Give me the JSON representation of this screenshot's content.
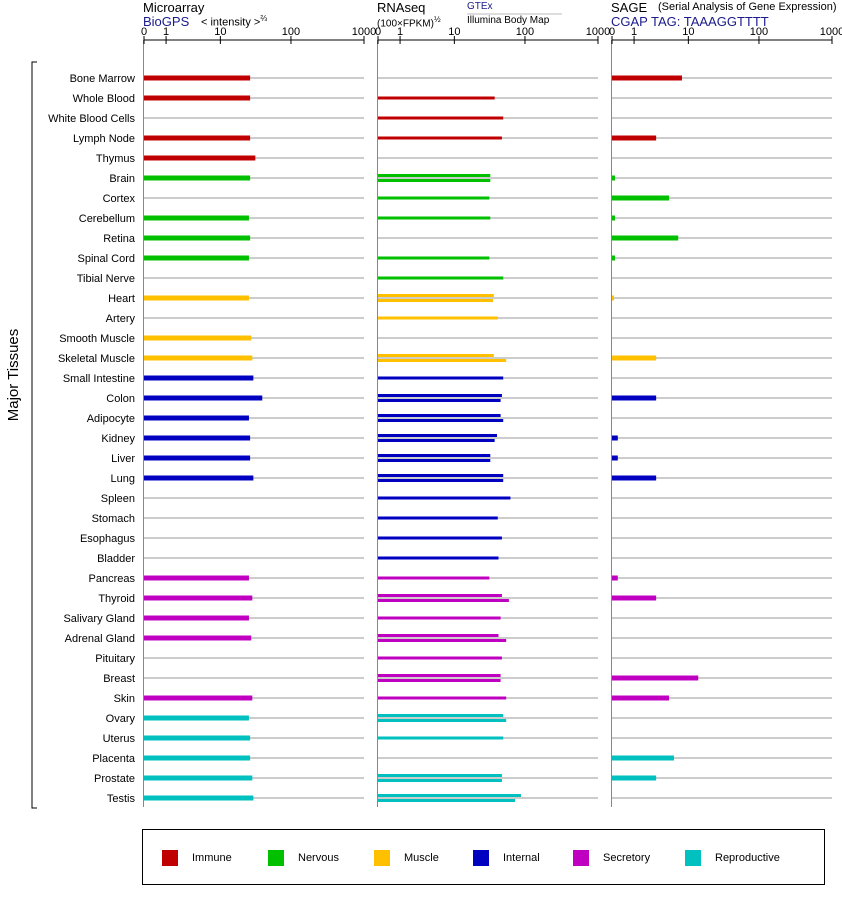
{
  "headers": {
    "microarray": {
      "title": "Microarray",
      "source": "BioGPS",
      "unit": "< intensity >",
      "exponent": "⅔"
    },
    "rnaseq": {
      "title": "RNAseq",
      "unit": "(100×FPKM)",
      "exponent": "½",
      "source1": "GTEx",
      "source2": "Illumina Body Map"
    },
    "sage": {
      "title": "SAGE",
      "subtitle": "(Serial Analysis of Gene Expression)",
      "tag": "CGAP TAG: TAAAGGTTTT"
    }
  },
  "legend": [
    {
      "label": "Immune",
      "color": "#c00000"
    },
    {
      "label": "Nervous",
      "color": "#00c000"
    },
    {
      "label": "Muscle",
      "color": "#ffc000"
    },
    {
      "label": "Internal",
      "color": "#0000c0"
    },
    {
      "label": "Secretory",
      "color": "#c000c0"
    },
    {
      "label": "Reproductive",
      "color": "#00c0c0"
    }
  ],
  "chart_data": {
    "type": "bar",
    "orientation": "horizontal",
    "group_label": "Major Tissues",
    "axis_ticks": [
      "0",
      "1",
      "10",
      "100",
      "1000"
    ],
    "xlim": [
      0,
      1000
    ],
    "categories": [
      "Bone Marrow",
      "Whole Blood",
      "White Blood Cells",
      "Lymph Node",
      "Thymus",
      "Brain",
      "Cortex",
      "Cerebellum",
      "Retina",
      "Spinal Cord",
      "Tibial Nerve",
      "Heart",
      "Artery",
      "Smooth Muscle",
      "Skeletal Muscle",
      "Small Intestine",
      "Colon",
      "Adipocyte",
      "Kidney",
      "Liver",
      "Lung",
      "Spleen",
      "Stomach",
      "Esophagus",
      "Bladder",
      "Pancreas",
      "Thyroid",
      "Salivary Gland",
      "Adrenal Gland",
      "Pituitary",
      "Breast",
      "Skin",
      "Ovary",
      "Uterus",
      "Placenta",
      "Prostate",
      "Testis"
    ],
    "tissue_group": [
      "Immune",
      "Immune",
      "Immune",
      "Immune",
      "Immune",
      "Nervous",
      "Nervous",
      "Nervous",
      "Nervous",
      "Nervous",
      "Nervous",
      "Muscle",
      "Muscle",
      "Muscle",
      "Muscle",
      "Internal",
      "Internal",
      "Internal",
      "Internal",
      "Internal",
      "Internal",
      "Internal",
      "Internal",
      "Internal",
      "Internal",
      "Secretory",
      "Secretory",
      "Secretory",
      "Secretory",
      "Secretory",
      "Secretory",
      "Secretory",
      "Reproductive",
      "Reproductive",
      "Reproductive",
      "Reproductive",
      "Reproductive"
    ],
    "panels": [
      {
        "name": "Microarray",
        "values": [
          27,
          27,
          null,
          27,
          32,
          27,
          null,
          26,
          27,
          26,
          null,
          26,
          null,
          28,
          29,
          30,
          40,
          26,
          27,
          27,
          30,
          null,
          null,
          null,
          null,
          26,
          29,
          26,
          28,
          null,
          null,
          29,
          26,
          27,
          27,
          29,
          30
        ]
      },
      {
        "name": "RNAseq",
        "values_gtex": [
          null,
          38,
          null,
          null,
          null,
          33,
          null,
          null,
          null,
          null,
          null,
          37,
          null,
          null,
          37,
          null,
          null,
          null,
          null,
          null,
          null,
          null,
          null,
          null,
          null,
          null,
          null,
          null,
          null,
          null,
          null,
          null,
          null,
          null,
          null,
          null,
          null
        ],
        "values_ibm": [
          null,
          null,
          null,
          null,
          null,
          null,
          null,
          null,
          null,
          null,
          null,
          null,
          null,
          null,
          null,
          null,
          null,
          null,
          null,
          null,
          null,
          null,
          null,
          null,
          null,
          null,
          null,
          null,
          null,
          null,
          null,
          null,
          null,
          null,
          null,
          null,
          null
        ]
      },
      {
        "name": "SAGE",
        "values": [
          8,
          null,
          null,
          3,
          null,
          0.1,
          5,
          0.1,
          7,
          0.1,
          null,
          0.05,
          null,
          null,
          3,
          null,
          3,
          null,
          0.2,
          0.2,
          3,
          null,
          null,
          null,
          null,
          0.2,
          3,
          null,
          null,
          null,
          14,
          5,
          null,
          null,
          6,
          3,
          null
        ]
      }
    ]
  },
  "rnaseq_bars": [
    {
      "row": 1,
      "values": [
        38
      ]
    },
    {
      "row": 2,
      "values": [
        50
      ]
    },
    {
      "row": 3,
      "values": [
        48
      ]
    },
    {
      "row": 5,
      "values": [
        33,
        33
      ]
    },
    {
      "row": 6,
      "values": [
        32
      ]
    },
    {
      "row": 7,
      "values": [
        33
      ]
    },
    {
      "row": 9,
      "values": [
        32
      ]
    },
    {
      "row": 10,
      "values": [
        50
      ]
    },
    {
      "row": 11,
      "values": [
        37,
        36
      ]
    },
    {
      "row": 12,
      "values": [
        42
      ]
    },
    {
      "row": 14,
      "values": [
        37,
        55
      ]
    },
    {
      "row": 15,
      "values": [
        50
      ]
    },
    {
      "row": 16,
      "values": [
        48,
        46
      ]
    },
    {
      "row": 17,
      "values": [
        46,
        50
      ]
    },
    {
      "row": 18,
      "values": [
        41,
        38
      ]
    },
    {
      "row": 19,
      "values": [
        33,
        33
      ]
    },
    {
      "row": 20,
      "values": [
        50,
        50
      ]
    },
    {
      "row": 21,
      "values": [
        63
      ]
    },
    {
      "row": 22,
      "values": [
        42
      ]
    },
    {
      "row": 23,
      "values": [
        48
      ]
    },
    {
      "row": 24,
      "values": [
        43
      ]
    },
    {
      "row": 25,
      "values": [
        32
      ]
    },
    {
      "row": 26,
      "values": [
        48,
        60
      ]
    },
    {
      "row": 27,
      "values": [
        46
      ]
    },
    {
      "row": 28,
      "values": [
        43,
        55
      ]
    },
    {
      "row": 29,
      "values": [
        48
      ]
    },
    {
      "row": 30,
      "values": [
        46,
        46
      ]
    },
    {
      "row": 31,
      "values": [
        55
      ]
    },
    {
      "row": 32,
      "values": [
        50,
        55
      ]
    },
    {
      "row": 33,
      "values": [
        50
      ]
    },
    {
      "row": 35,
      "values": [
        48,
        48
      ]
    },
    {
      "row": 36,
      "values": [
        88,
        73
      ]
    }
  ]
}
